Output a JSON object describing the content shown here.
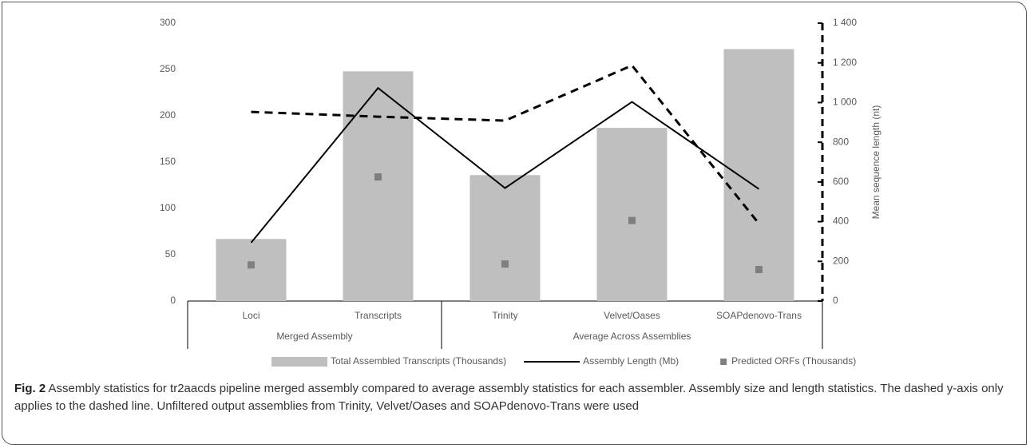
{
  "chart_data": {
    "type": "combo",
    "categories": [
      "Loci",
      "Transcripts",
      "Trinity",
      "Velvet/Oases",
      "SOAPdenovo-Trans"
    ],
    "groups": [
      {
        "name": "Merged Assembly",
        "size": 2
      },
      {
        "name": "Average Across Assemblies",
        "size": 3
      }
    ],
    "series": [
      {
        "name": "Total Assembled Transcripts (Thousands)",
        "kind": "bar",
        "color": "#bfbfbf",
        "values": [
          67,
          248,
          136,
          187,
          272
        ]
      },
      {
        "name": "Assembly Length (Mb)",
        "kind": "line",
        "color": "#000000",
        "values": [
          63,
          230,
          122,
          215,
          121
        ]
      },
      {
        "name": "Predicted ORFs (Thousands)",
        "kind": "scatter",
        "color": "#7f7f7f",
        "values": [
          39,
          134,
          40,
          87,
          34
        ]
      },
      {
        "kind": "line",
        "dashed": true,
        "axis": "y2",
        "color": "#000000",
        "values": [
          953,
          929,
          909,
          1187,
          390
        ]
      }
    ],
    "ylim": [
      0,
      300
    ],
    "yticks": [
      0,
      50,
      100,
      150,
      200,
      250,
      300
    ],
    "y2label": "Mean sequence length (nt)",
    "y2lim": [
      0,
      1400
    ],
    "y2ticks": [
      0,
      200,
      400,
      600,
      800,
      {
        "value": 1000,
        "label": "1 000"
      },
      {
        "value": 1200,
        "label": "1 200"
      },
      {
        "value": 1400,
        "label": "1 400"
      }
    ],
    "legend": "bottom",
    "caption": {
      "label": "Fig. 2",
      "text": "Assembly statistics for tr2aacds pipeline merged assembly compared to average assembly statistics for each assembler. Assembly size and length statistics. The dashed y-axis only applies to the dashed line. Unfiltered output assemblies from Trinity, Velvet/Oases and SOAPdenovo-Trans were used"
    }
  }
}
